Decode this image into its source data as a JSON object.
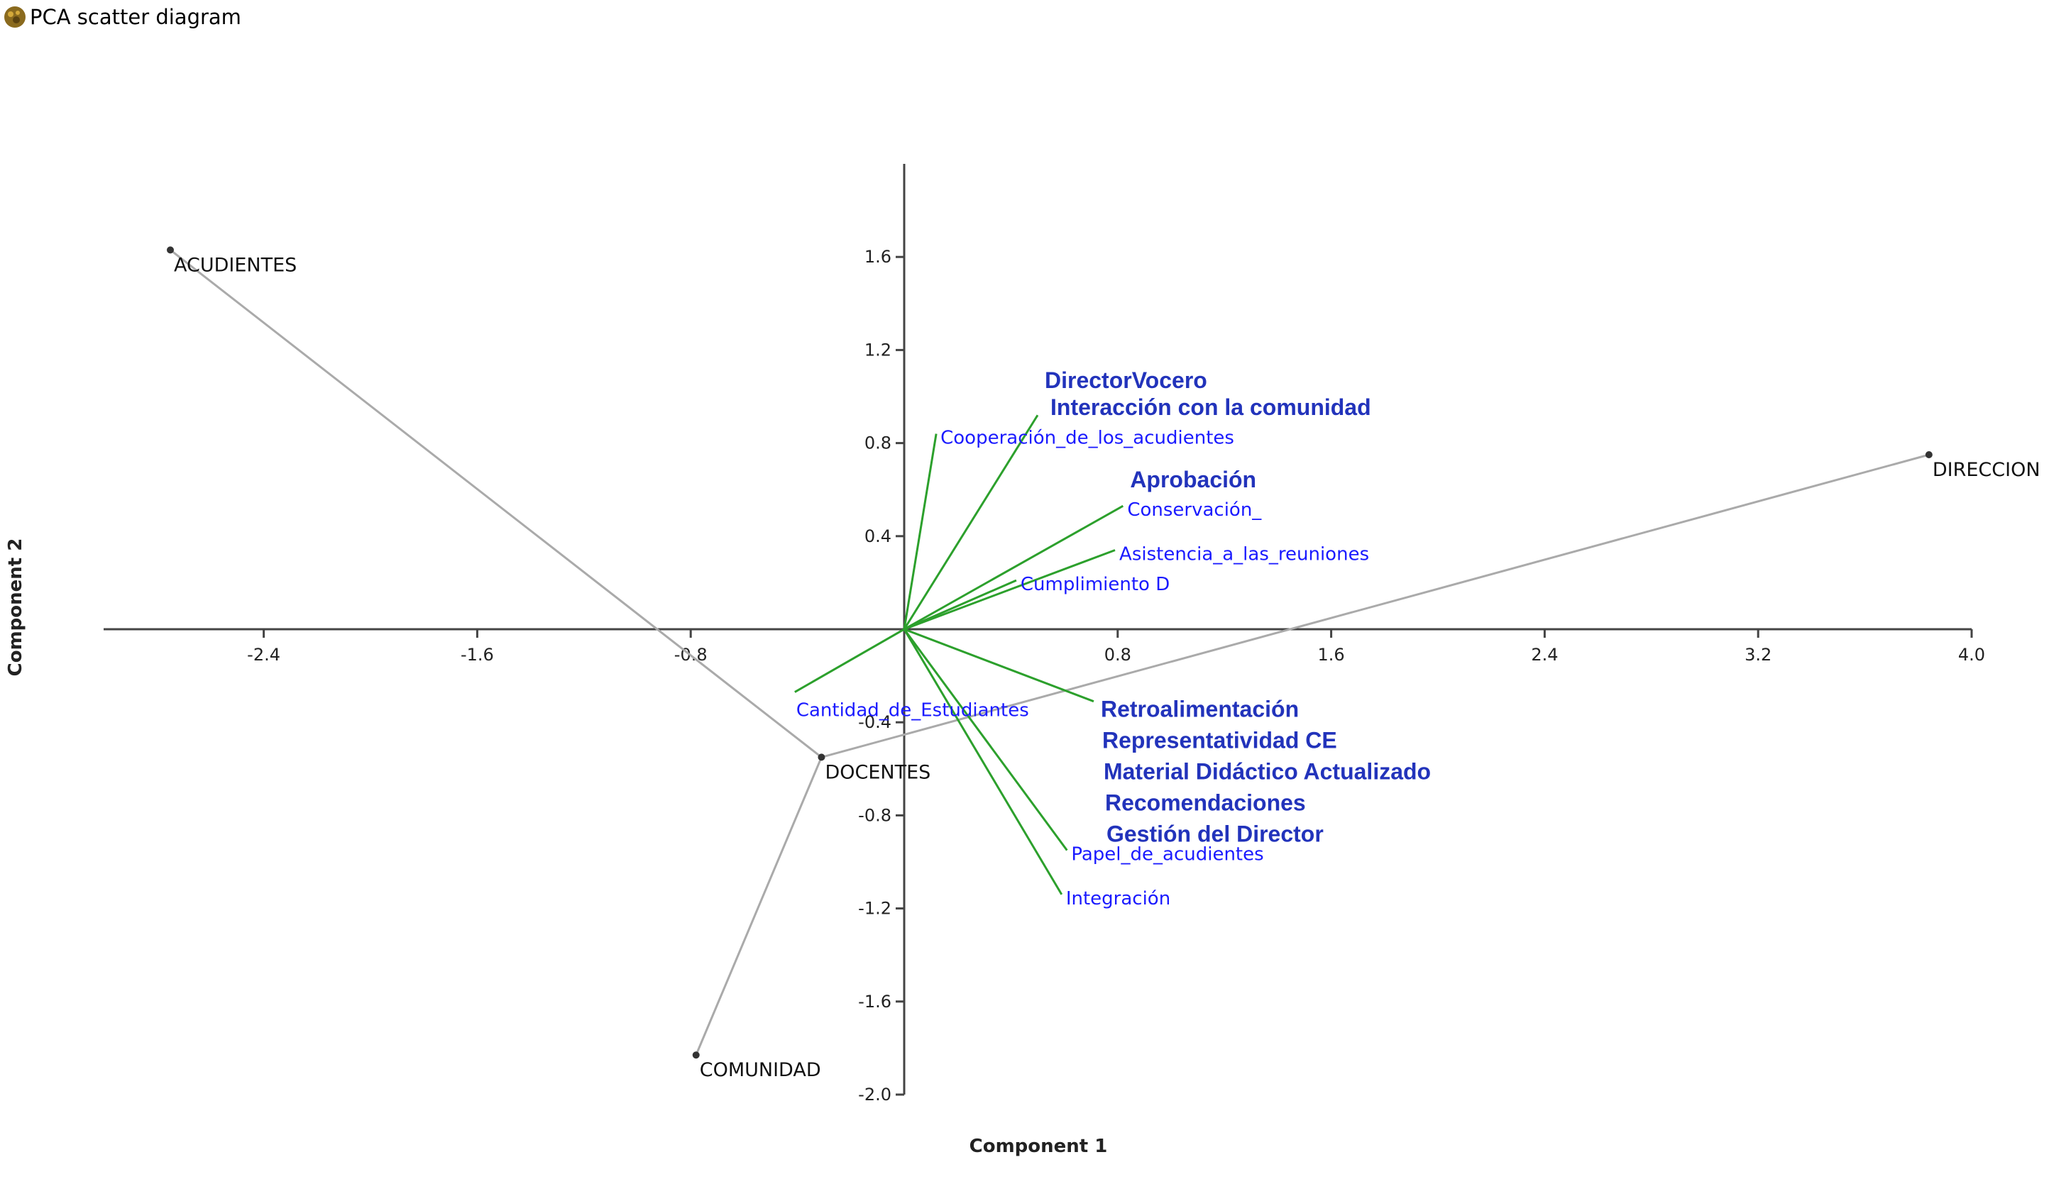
{
  "window": {
    "title": "PCA scatter diagram",
    "icon": "pca-app-icon"
  },
  "chart_data": {
    "type": "scatter",
    "title": "",
    "xlabel": "Component 1",
    "ylabel": "Component 2",
    "xlim": [
      -3.0,
      4.0
    ],
    "ylim": [
      -2.0,
      2.0
    ],
    "xticks": [
      -2.4,
      -1.6,
      -0.8,
      0.8,
      1.6,
      2.4,
      3.2,
      4.0
    ],
    "yticks": [
      1.6,
      1.2,
      0.8,
      0.4,
      -0.4,
      -0.8,
      -1.2,
      -1.6,
      -2.0
    ],
    "grid": false,
    "legend": "none",
    "points": [
      {
        "label": "ACUDIENTES",
        "x": -2.75,
        "y": 1.63
      },
      {
        "label": "DIRECCION",
        "x": 3.84,
        "y": 0.75
      },
      {
        "label": "DOCENTES",
        "x": -0.31,
        "y": -0.55
      },
      {
        "label": "COMUNIDAD",
        "x": -0.78,
        "y": -1.83
      }
    ],
    "point_links": [
      [
        "ACUDIENTES",
        "DOCENTES"
      ],
      [
        "DOCENTES",
        "COMUNIDAD"
      ],
      [
        "DOCENTES",
        "DIRECCION"
      ]
    ],
    "loadings": [
      {
        "label": "DirectorVocero",
        "x": 0.5,
        "y": 0.92,
        "style": "large"
      },
      {
        "label": "Interacción con la comunidad",
        "x": 0.5,
        "y": 0.92,
        "style": "large"
      },
      {
        "label": "Cooperación_de_los_acudientes",
        "x": 0.12,
        "y": 0.84,
        "style": "small"
      },
      {
        "label": "Aprobación",
        "x": 0.82,
        "y": 0.53,
        "style": "large"
      },
      {
        "label": "Conservación_",
        "x": 0.82,
        "y": 0.53,
        "style": "small"
      },
      {
        "label": "Asistencia_a_las_reuniones",
        "x": 0.79,
        "y": 0.34,
        "style": "small"
      },
      {
        "label": "Cumplimiento D",
        "x": 0.42,
        "y": 0.21,
        "style": "small"
      },
      {
        "label": "Cantidad_de_Estudiantes",
        "x": -0.41,
        "y": -0.27,
        "style": "small"
      },
      {
        "label": "Retroalimentación",
        "x": 0.71,
        "y": -0.31,
        "style": "large"
      },
      {
        "label": "Representatividad CE",
        "x": 0.71,
        "y": -0.31,
        "style": "large"
      },
      {
        "label": "Material Didáctico Actualizado",
        "x": 0.71,
        "y": -0.31,
        "style": "large"
      },
      {
        "label": "Recomendaciones",
        "x": 0.71,
        "y": -0.31,
        "style": "large"
      },
      {
        "label": "Gestión del Director",
        "x": 0.71,
        "y": -0.31,
        "style": "large"
      },
      {
        "label": "Papel_de_acudientes",
        "x": 0.61,
        "y": -0.95,
        "style": "small"
      },
      {
        "label": "Integración",
        "x": 0.59,
        "y": -1.14,
        "style": "small"
      }
    ],
    "colors": {
      "loading_line": "#2ca02c",
      "loading_label": "#1a1aff",
      "loading_label_large": "#2233bb",
      "point": "#333333",
      "point_link": "#aaaaaa",
      "axis": "#444444"
    }
  }
}
